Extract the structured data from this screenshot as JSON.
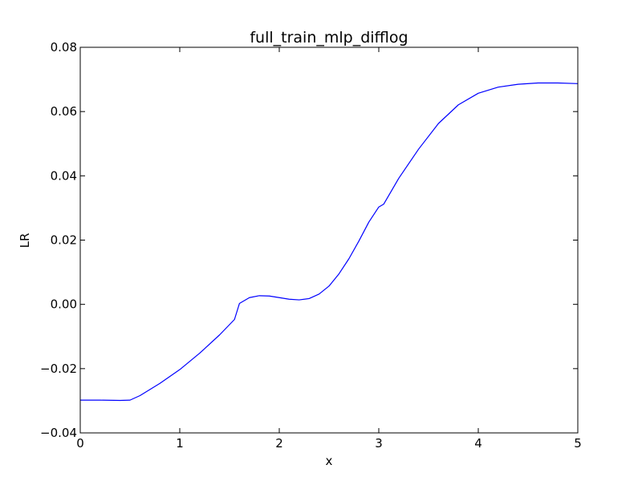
{
  "chart_data": {
    "type": "line",
    "title": "full_train_mlp_difflog",
    "xlabel": "x",
    "ylabel": "LR",
    "xlim": [
      0,
      5
    ],
    "ylim": [
      -0.04,
      0.08
    ],
    "x_ticks": [
      0,
      1,
      2,
      3,
      4,
      5
    ],
    "x_tick_labels": [
      "0",
      "1",
      "2",
      "3",
      "4",
      "5"
    ],
    "y_ticks": [
      -0.04,
      -0.02,
      0.0,
      0.02,
      0.04,
      0.06,
      0.08
    ],
    "y_tick_labels": [
      "−0.04",
      "−0.02",
      "0.00",
      "0.02",
      "0.04",
      "0.06",
      "0.08"
    ],
    "grid": false,
    "line_color": "#0000ff",
    "series": [
      {
        "x": [
          0,
          0.2,
          0.4,
          0.5,
          0.6,
          0.8,
          1.0,
          1.2,
          1.4,
          1.55,
          1.6,
          1.7,
          1.8,
          1.9,
          2.0,
          2.1,
          2.2,
          2.3,
          2.4,
          2.5,
          2.6,
          2.7,
          2.8,
          2.9,
          3.0,
          3.05,
          3.2,
          3.4,
          3.6,
          3.8,
          4.0,
          4.2,
          4.4,
          4.6,
          4.8,
          5.0
        ],
        "y": [
          -0.0298,
          -0.0298,
          -0.0299,
          -0.0298,
          -0.0284,
          -0.0246,
          -0.0203,
          -0.0152,
          -0.0095,
          -0.0047,
          0.0003,
          0.0021,
          0.0027,
          0.0026,
          0.0021,
          0.0016,
          0.0014,
          0.0018,
          0.0032,
          0.0057,
          0.0095,
          0.0142,
          0.0197,
          0.0256,
          0.0303,
          0.0312,
          0.0392,
          0.0483,
          0.0563,
          0.0621,
          0.0657,
          0.0676,
          0.0685,
          0.0689,
          0.0689,
          0.0687
        ]
      }
    ]
  }
}
